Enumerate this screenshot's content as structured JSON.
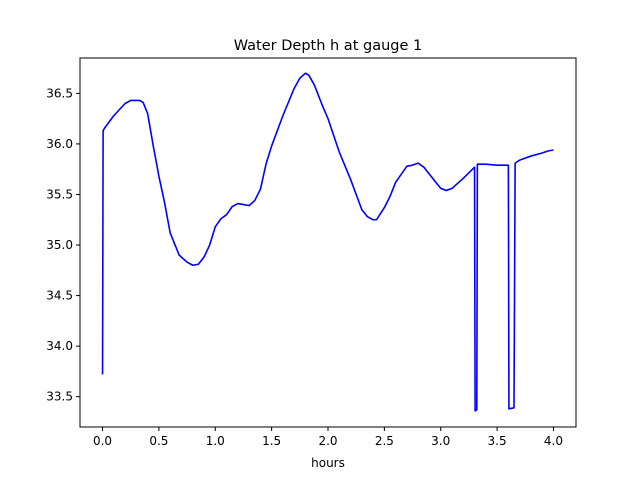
{
  "chart_data": {
    "type": "line",
    "title": "Water Depth h at gauge 1",
    "xlabel": "hours",
    "ylabel": "",
    "xlim": [
      -0.2,
      4.2
    ],
    "ylim": [
      33.2,
      36.85
    ],
    "xticks": [
      0.0,
      0.5,
      1.0,
      1.5,
      2.0,
      2.5,
      3.0,
      3.5,
      4.0
    ],
    "xtick_labels": [
      "0.0",
      "0.5",
      "1.0",
      "1.5",
      "2.0",
      "2.5",
      "3.0",
      "3.5",
      "4.0"
    ],
    "yticks": [
      33.5,
      34.0,
      34.5,
      35.0,
      35.5,
      36.0,
      36.5
    ],
    "ytick_labels": [
      "33.5",
      "34.0",
      "34.5",
      "35.0",
      "35.5",
      "36.0",
      "36.5"
    ],
    "grid": false,
    "series": [
      {
        "color": "#0000ff",
        "x": [
          0.0,
          0.005,
          0.02,
          0.1,
          0.2,
          0.25,
          0.3,
          0.33,
          0.36,
          0.4,
          0.45,
          0.5,
          0.55,
          0.6,
          0.68,
          0.75,
          0.8,
          0.85,
          0.9,
          0.95,
          1.0,
          1.05,
          1.1,
          1.15,
          1.2,
          1.25,
          1.3,
          1.35,
          1.4,
          1.45,
          1.5,
          1.6,
          1.7,
          1.75,
          1.8,
          1.83,
          1.88,
          1.95,
          2.0,
          2.1,
          2.2,
          2.3,
          2.35,
          2.4,
          2.43,
          2.5,
          2.55,
          2.6,
          2.7,
          2.75,
          2.8,
          2.85,
          2.95,
          3.0,
          3.05,
          3.1,
          3.2,
          3.3,
          3.305,
          3.32,
          3.325,
          3.4,
          3.5,
          3.6,
          3.605,
          3.65,
          3.66,
          3.7,
          3.8,
          3.9,
          3.95,
          4.0
        ],
        "y": [
          33.72,
          36.13,
          36.16,
          36.28,
          36.4,
          36.43,
          36.43,
          36.43,
          36.41,
          36.3,
          35.98,
          35.68,
          35.42,
          35.12,
          34.9,
          34.83,
          34.8,
          34.81,
          34.88,
          35.0,
          35.18,
          35.26,
          35.3,
          35.38,
          35.41,
          35.4,
          35.39,
          35.44,
          35.55,
          35.8,
          35.98,
          36.28,
          36.55,
          36.65,
          36.7,
          36.68,
          36.58,
          36.38,
          36.25,
          35.92,
          35.65,
          35.35,
          35.28,
          35.25,
          35.25,
          35.37,
          35.48,
          35.62,
          35.78,
          35.79,
          35.81,
          35.77,
          35.63,
          35.56,
          35.54,
          35.56,
          35.66,
          35.77,
          33.36,
          33.37,
          35.8,
          35.8,
          35.79,
          35.79,
          33.38,
          33.39,
          35.81,
          35.84,
          35.88,
          35.91,
          35.93,
          35.94
        ]
      }
    ]
  }
}
